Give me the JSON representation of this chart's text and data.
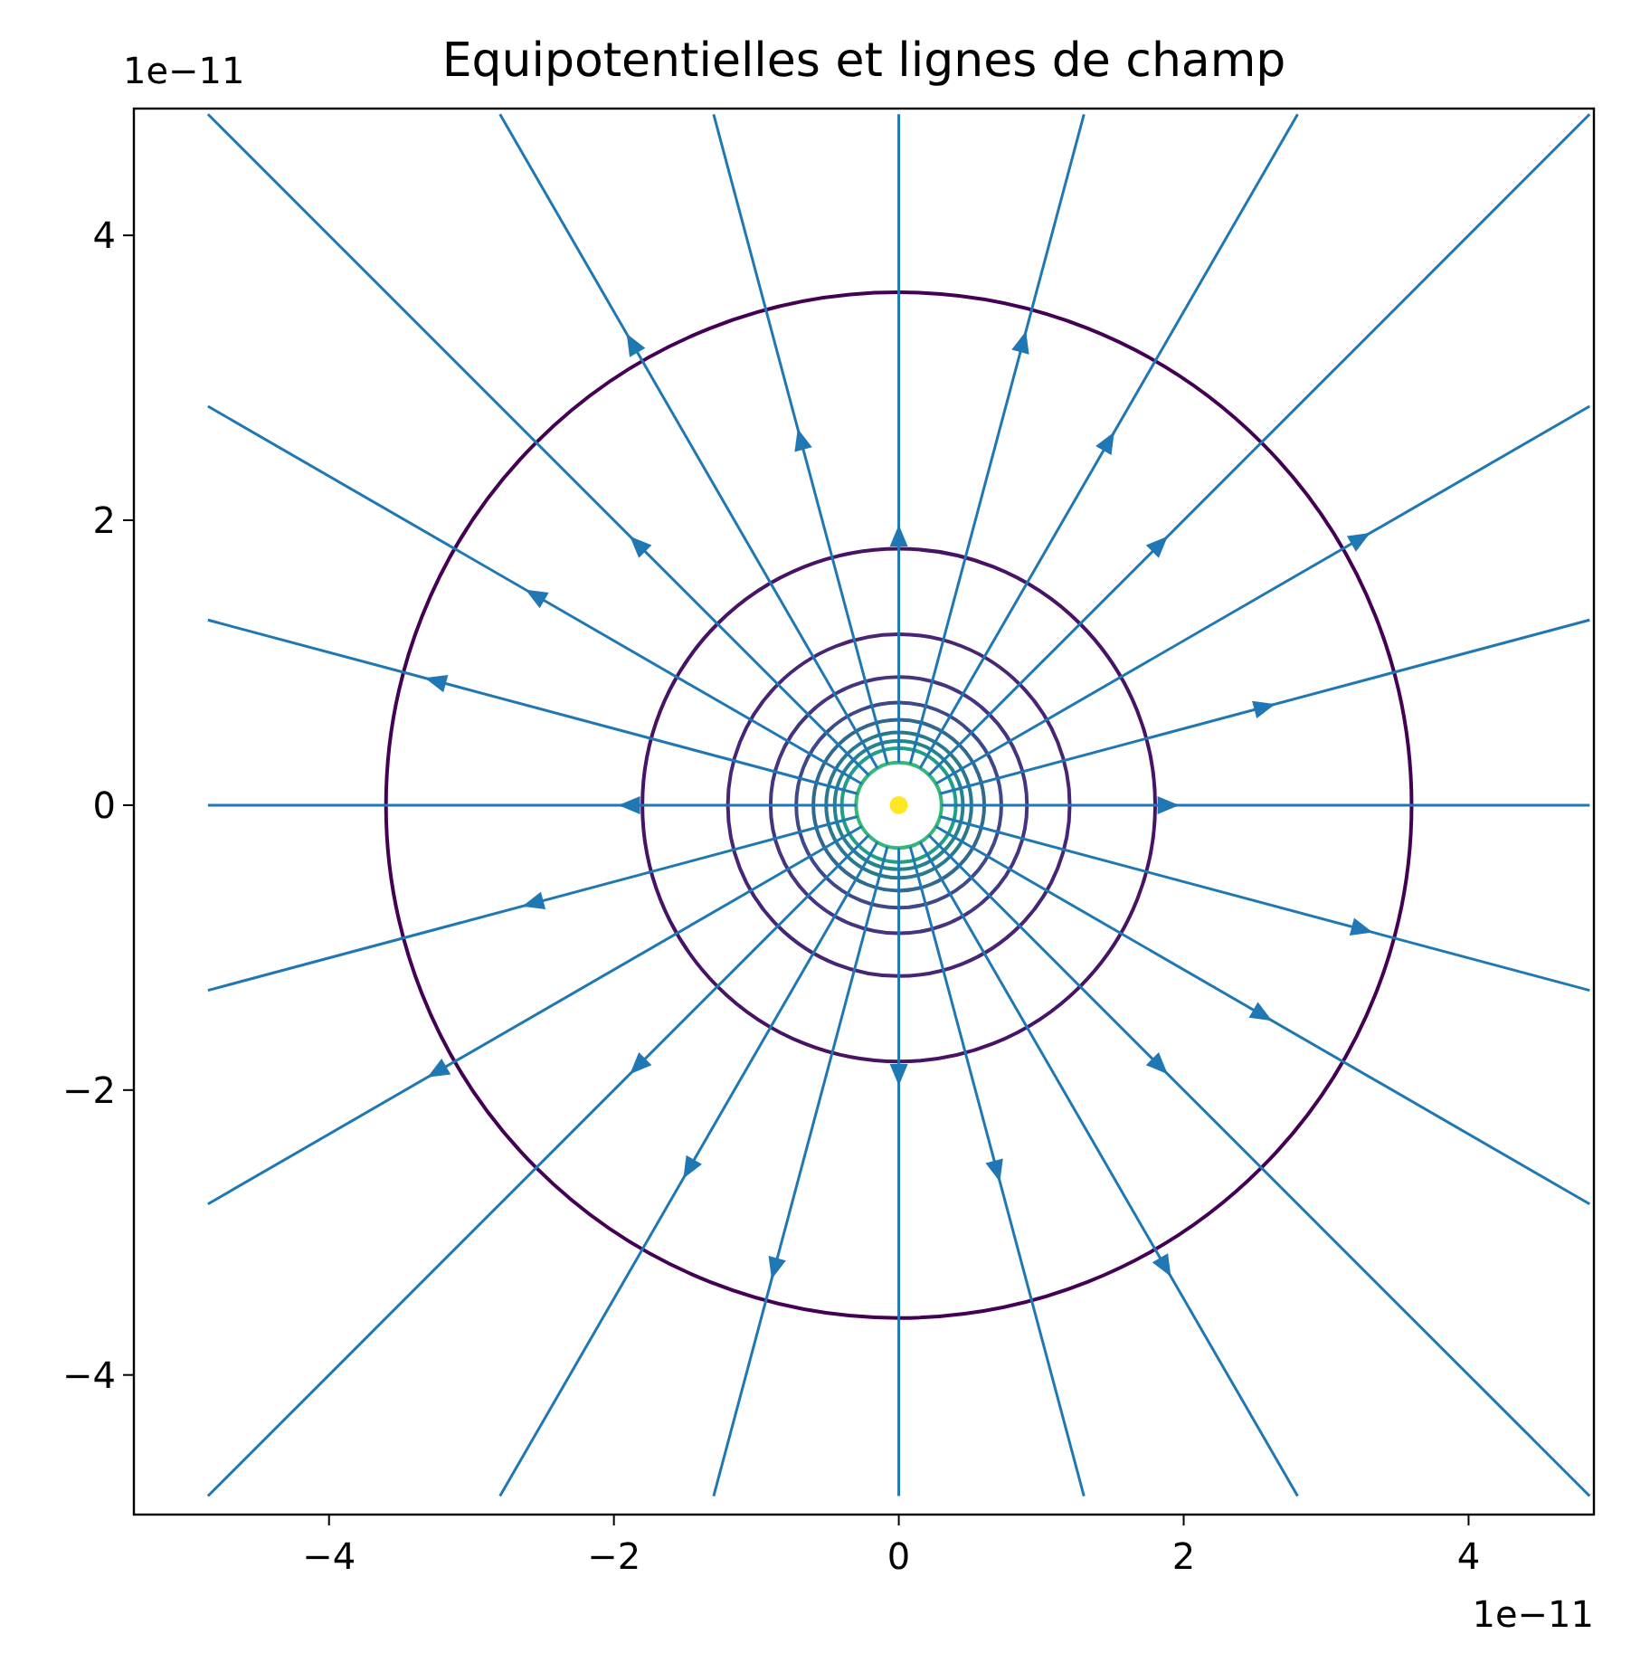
{
  "chart_data": {
    "type": "line",
    "title": "Equipotentielles et lignes de champ",
    "xlim": [
      -5.37,
      4.88
    ],
    "ylim": [
      -4.98,
      4.89
    ],
    "xticks": [
      {
        "value": -4,
        "label": "−4"
      },
      {
        "value": -2,
        "label": "−2"
      },
      0,
      2,
      4
    ],
    "yticks": [
      {
        "value": -4,
        "label": "−4"
      },
      {
        "value": -2,
        "label": "−2"
      },
      0,
      2,
      4
    ],
    "annotations": [
      "1e−11",
      "1e−11"
    ],
    "series": [
      {
        "color": "#1f77b4",
        "x": [
          0.3,
          4.85
        ],
        "values": [
          0,
          0
        ]
      },
      {
        "color": "#1f77b4",
        "x": [
          0.29,
          4.85
        ],
        "values": [
          0.08,
          1.3
        ]
      },
      {
        "color": "#1f77b4",
        "x": [
          0.26,
          4.85
        ],
        "values": [
          0.15,
          2.8
        ]
      },
      {
        "color": "#1f77b4",
        "x": [
          0.21,
          4.85
        ],
        "values": [
          0.21,
          4.85
        ]
      },
      {
        "color": "#1f77b4",
        "x": [
          0.15,
          2.8
        ],
        "values": [
          0.26,
          4.85
        ]
      },
      {
        "color": "#1f77b4",
        "x": [
          0.08,
          1.3
        ],
        "values": [
          0.29,
          4.85
        ]
      },
      {
        "color": "#1f77b4",
        "x": [
          0,
          0
        ],
        "values": [
          0.3,
          4.85
        ]
      },
      {
        "color": "#1f77b4",
        "x": [
          -0.08,
          -1.3
        ],
        "values": [
          0.29,
          4.85
        ]
      },
      {
        "color": "#1f77b4",
        "x": [
          -0.15,
          -2.8
        ],
        "values": [
          0.26,
          4.85
        ]
      },
      {
        "color": "#1f77b4",
        "x": [
          -0.21,
          -4.85
        ],
        "values": [
          0.21,
          4.85
        ]
      },
      {
        "color": "#1f77b4",
        "x": [
          -0.26,
          -4.85
        ],
        "values": [
          0.15,
          2.8
        ]
      },
      {
        "color": "#1f77b4",
        "x": [
          -0.29,
          -4.85
        ],
        "values": [
          0.08,
          1.3
        ]
      },
      {
        "color": "#1f77b4",
        "x": [
          -0.3,
          -4.85
        ],
        "values": [
          0,
          0
        ]
      },
      {
        "color": "#1f77b4",
        "x": [
          -0.29,
          -4.85
        ],
        "values": [
          -0.08,
          -1.3
        ]
      },
      {
        "color": "#1f77b4",
        "x": [
          -0.26,
          -4.85
        ],
        "values": [
          -0.15,
          -2.8
        ]
      },
      {
        "color": "#1f77b4",
        "x": [
          -0.21,
          -4.85
        ],
        "values": [
          -0.21,
          -4.85
        ]
      },
      {
        "color": "#1f77b4",
        "x": [
          -0.15,
          -2.8
        ],
        "values": [
          -0.26,
          -4.85
        ]
      },
      {
        "color": "#1f77b4",
        "x": [
          -0.08,
          -1.3
        ],
        "values": [
          -0.29,
          -4.85
        ]
      },
      {
        "color": "#1f77b4",
        "x": [
          0,
          0
        ],
        "values": [
          -0.3,
          -4.85
        ]
      },
      {
        "color": "#1f77b4",
        "x": [
          0.08,
          1.3
        ],
        "values": [
          -0.29,
          -4.85
        ]
      },
      {
        "color": "#1f77b4",
        "x": [
          0.15,
          2.8
        ],
        "values": [
          -0.26,
          -4.85
        ]
      },
      {
        "color": "#1f77b4",
        "x": [
          0.21,
          4.85
        ],
        "values": [
          -0.21,
          -4.85
        ]
      },
      {
        "color": "#1f77b4",
        "x": [
          0.26,
          4.85
        ],
        "values": [
          -0.15,
          -2.8
        ]
      },
      {
        "color": "#1f77b4",
        "x": [
          0.29,
          4.85
        ],
        "values": [
          -0.08,
          -1.3
        ]
      },
      {
        "type": "scatter",
        "marker": "circle",
        "color": "#fde725",
        "x": [
          0
        ],
        "values": [
          0
        ]
      }
    ]
  }
}
